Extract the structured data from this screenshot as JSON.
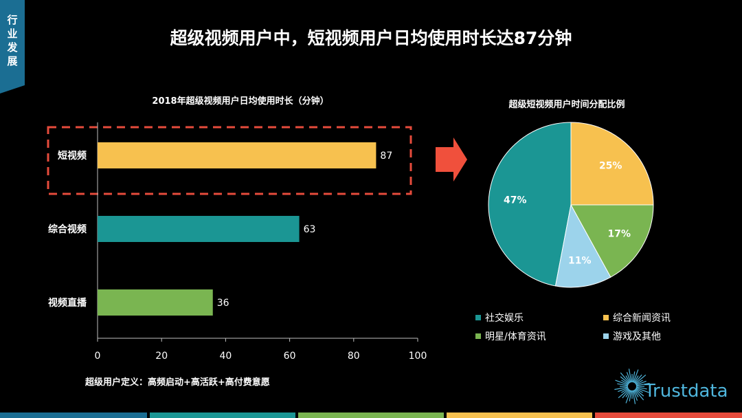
{
  "side_tab": {
    "line1": "行",
    "line2": "业",
    "line3": "发",
    "line4": "展"
  },
  "main_title": "超级视频用户中，短视频用户日均使用时长达87分钟",
  "footnote": "超级用户定义：高频启动+高活跃+高付费意愿",
  "logo": {
    "text": "Trustdata"
  },
  "colors": {
    "accent_blue": "#1b6e93",
    "yellow": "#f7c14f",
    "teal": "#1b9694",
    "green": "#7ab551",
    "light_blue": "#9cd3eb",
    "red_highlight": "#e64b3c"
  },
  "chart_data": [
    {
      "type": "bar",
      "orientation": "horizontal",
      "title": "2018年超级视频用户日均使用时长（分钟）",
      "categories": [
        "短视频",
        "综合视频",
        "视频直播"
      ],
      "values": [
        87,
        63,
        36
      ],
      "bar_colors": [
        "#f7c14f",
        "#1b9694",
        "#7ab551"
      ],
      "xlim": [
        0,
        100
      ],
      "xticks": [
        0,
        20,
        40,
        60,
        80,
        100
      ],
      "grid": false,
      "highlight": "短视频"
    },
    {
      "type": "pie",
      "title": "超级短视频用户时间分配比例",
      "categories": [
        "社交娱乐",
        "综合新闻资讯",
        "明星/体育资讯",
        "游戏及其他"
      ],
      "values": [
        47,
        25,
        17,
        11
      ],
      "labels": [
        "47%",
        "25%",
        "17%",
        "11%"
      ],
      "colors": [
        "#1b9694",
        "#f7c14f",
        "#7ab551",
        "#9cd3eb"
      ],
      "legend_position": "bottom"
    }
  ]
}
